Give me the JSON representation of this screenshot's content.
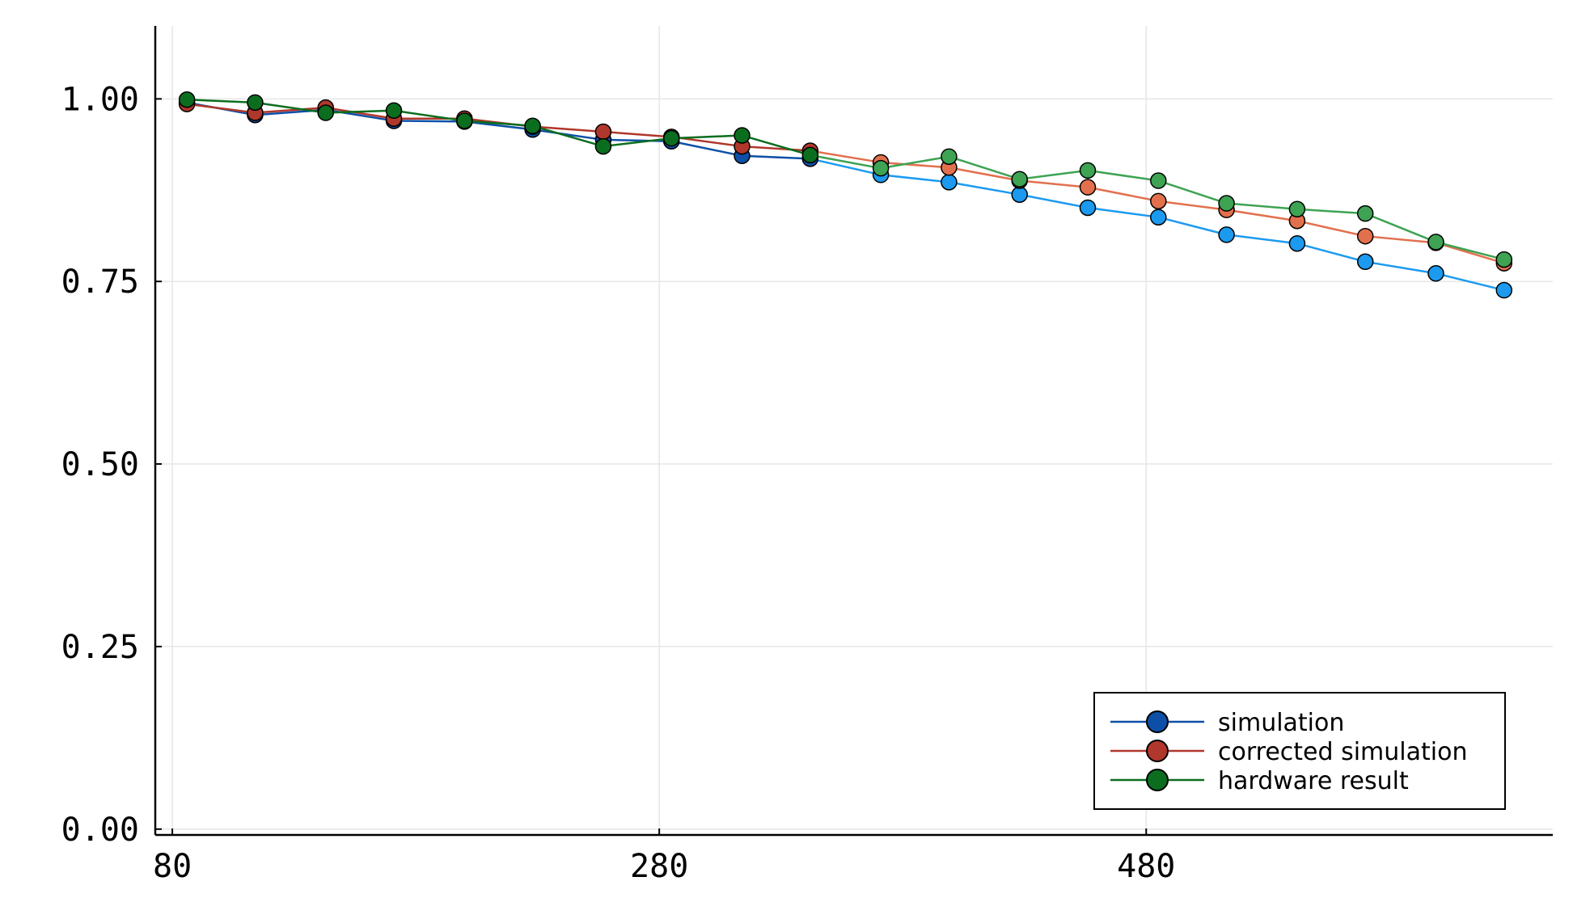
{
  "chart_data": {
    "type": "line",
    "title": "",
    "xlabel": "",
    "ylabel": "",
    "xlim": [
      73,
      647
    ],
    "ylim": [
      -0.008,
      1.1
    ],
    "grid": true,
    "legend_position": "bottom-right",
    "x_ticks": [
      80,
      280,
      480
    ],
    "x_tick_labels": [
      "80",
      "280",
      "480"
    ],
    "y_ticks": [
      0.0,
      0.25,
      0.5,
      0.75,
      1.0
    ],
    "y_tick_labels": [
      "0.00",
      "0.25",
      "0.50",
      "0.75",
      "1.00"
    ],
    "x": [
      86,
      114,
      143,
      171,
      200,
      228,
      257,
      285,
      314,
      342,
      371,
      399,
      428,
      456,
      485,
      513,
      542,
      570,
      599,
      627
    ],
    "series": [
      {
        "name": "simulation",
        "legend_color": "#0d4fa6",
        "color_left": "#0d4fa6",
        "color_right": "#1b9af0",
        "split_index": 10,
        "values": [
          0.995,
          0.978,
          0.985,
          0.97,
          0.969,
          0.958,
          0.944,
          0.942,
          0.922,
          0.918,
          0.896,
          0.886,
          0.869,
          0.851,
          0.838,
          0.814,
          0.802,
          0.777,
          0.761,
          0.738
        ]
      },
      {
        "name": "corrected simulation",
        "legend_color": "#b0372b",
        "color_left": "#b0372b",
        "color_right": "#e2704d",
        "split_index": 10,
        "values": [
          0.993,
          0.981,
          0.988,
          0.973,
          0.973,
          0.962,
          0.955,
          0.948,
          0.935,
          0.929,
          0.913,
          0.906,
          0.888,
          0.879,
          0.86,
          0.848,
          0.833,
          0.812,
          0.803,
          0.775
        ]
      },
      {
        "name": "hardware result",
        "legend_color": "#0b6e1f",
        "color_left": "#0b6e1f",
        "color_right": "#3ea353",
        "split_index": 10,
        "values": [
          0.999,
          0.995,
          0.981,
          0.984,
          0.97,
          0.963,
          0.935,
          0.946,
          0.95,
          0.923,
          0.905,
          0.921,
          0.89,
          0.902,
          0.888,
          0.857,
          0.849,
          0.843,
          0.804,
          0.78
        ]
      }
    ]
  }
}
